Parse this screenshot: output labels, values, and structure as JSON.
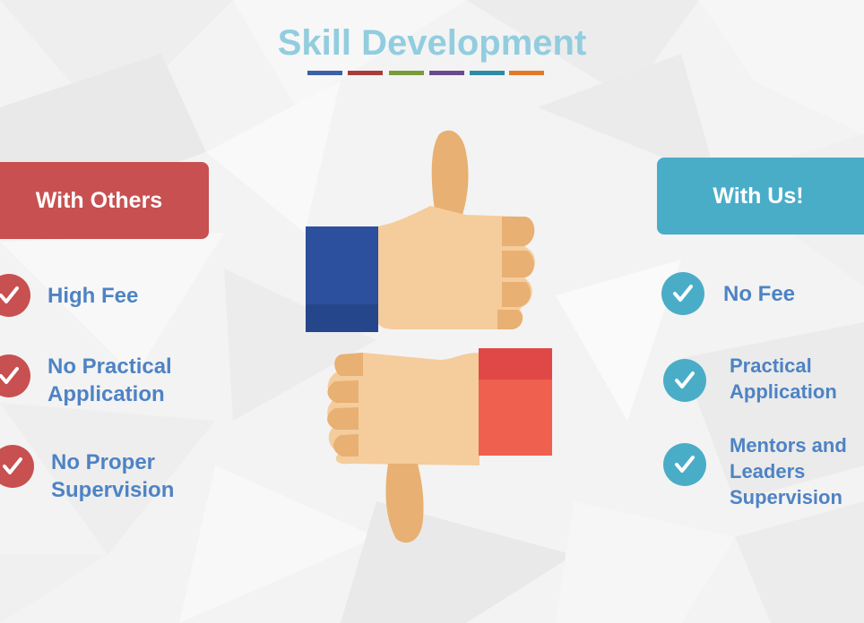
{
  "title": "Skill Development",
  "accent_bars": [
    "#3d5fa8",
    "#a83c3c",
    "#7a9a3c",
    "#6a4a8a",
    "#2f8aa6",
    "#e07a2a"
  ],
  "left": {
    "header": "With Others",
    "color": "#c85050",
    "items": [
      {
        "lines": [
          "High Fee"
        ]
      },
      {
        "lines": [
          "No Practical",
          "Application"
        ]
      },
      {
        "lines": [
          "No Proper",
          "Supervision"
        ]
      }
    ]
  },
  "right": {
    "header": "With Us!",
    "color": "#4aadc8",
    "items": [
      {
        "lines": [
          "No Fee"
        ]
      },
      {
        "lines": [
          "Practical",
          "Application"
        ]
      },
      {
        "lines": [
          "Mentors and",
          "Leaders",
          "Supervision"
        ]
      }
    ]
  },
  "text_color": "#4e83c4",
  "icons": {
    "thumbs_up": "thumbs-up-icon",
    "thumbs_down": "thumbs-down-icon",
    "check": "check-icon"
  }
}
